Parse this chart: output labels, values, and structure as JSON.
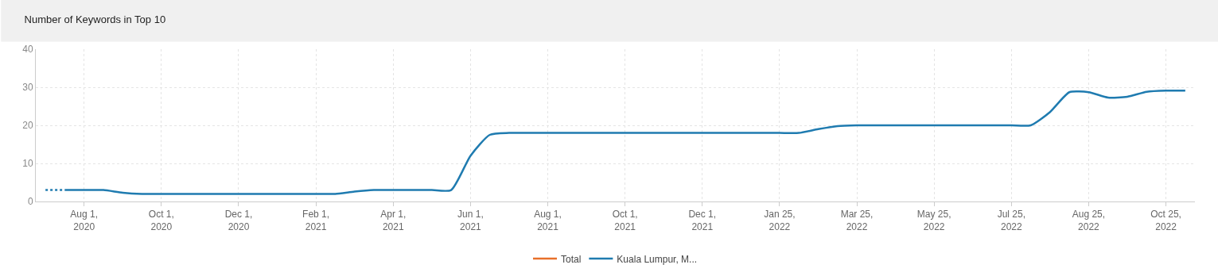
{
  "chart_data": {
    "type": "line",
    "title": "Number of Keywords in Top 10",
    "categories": [
      null,
      null,
      "Aug 1,\n2020",
      null,
      null,
      null,
      "Oct 1,\n2020",
      null,
      null,
      null,
      "Dec 1,\n2020",
      null,
      null,
      null,
      "Feb 1,\n2021",
      null,
      null,
      null,
      "Apr 1,\n2021",
      null,
      null,
      null,
      "Jun 1,\n2021",
      null,
      null,
      null,
      "Aug 1,\n2021",
      null,
      null,
      null,
      "Oct 1,\n2021",
      null,
      null,
      null,
      "Dec 1,\n2021",
      null,
      null,
      null,
      "Jan 25,\n2022",
      null,
      null,
      null,
      "Mar 25,\n2022",
      null,
      null,
      null,
      "May 25,\n2022",
      null,
      null,
      null,
      "Jul 25,\n2022",
      null,
      null,
      null,
      "Aug 25,\n2022",
      null,
      null,
      null,
      "Oct 25,\n2022",
      null
    ],
    "ylim": [
      0,
      40
    ],
    "yticks": [
      0,
      10,
      20,
      30,
      40
    ],
    "grid": true,
    "legend": "bottom",
    "series": [
      {
        "name": "Total",
        "color": "#e8702a",
        "values": [
          null,
          null,
          null,
          null,
          null,
          null,
          null,
          null,
          null,
          null,
          null,
          null,
          null,
          null,
          null,
          null,
          null,
          null,
          null,
          null,
          null,
          null,
          null,
          null,
          null,
          null,
          null,
          null,
          null,
          null,
          null,
          null,
          null,
          null,
          null,
          null,
          null,
          null,
          null,
          null,
          null,
          null,
          null,
          null,
          null,
          null,
          null,
          null,
          null,
          null,
          null,
          null,
          null,
          null,
          null,
          null,
          null,
          null,
          null,
          null
        ]
      },
      {
        "name": "Kuala Lumpur, M...",
        "color": "#1f7bb0",
        "line_style": "solid",
        "values": [
          null,
          3,
          3,
          3,
          2.3,
          2,
          2,
          2,
          2,
          2,
          2,
          2,
          2,
          2,
          2,
          2,
          2.6,
          3,
          3,
          3,
          3,
          3,
          12,
          17.5,
          18,
          18,
          18,
          18,
          18,
          18,
          18,
          18,
          18,
          18,
          18,
          18,
          18,
          18,
          18,
          18,
          19,
          19.8,
          20,
          20,
          20,
          20,
          20,
          20,
          20,
          20,
          20,
          20,
          23.5,
          28.7,
          28.7,
          27.3,
          27.5,
          28.8,
          29.1,
          29.1
        ]
      },
      {
        "color": "#1f7bb0",
        "line_style": "dotted",
        "values": [
          3,
          3,
          null,
          null,
          null,
          null,
          null,
          null,
          null,
          null,
          null,
          null,
          null,
          null,
          null,
          null,
          null,
          null,
          null,
          null,
          null,
          null,
          null,
          null,
          null,
          null,
          null,
          null,
          null,
          null,
          null,
          null,
          null,
          null,
          null,
          null,
          null,
          null,
          null,
          null,
          null,
          null,
          null,
          null,
          null,
          null,
          null,
          null,
          null,
          null,
          null,
          null,
          null,
          null,
          null,
          null,
          null,
          null,
          null,
          null
        ]
      }
    ]
  }
}
